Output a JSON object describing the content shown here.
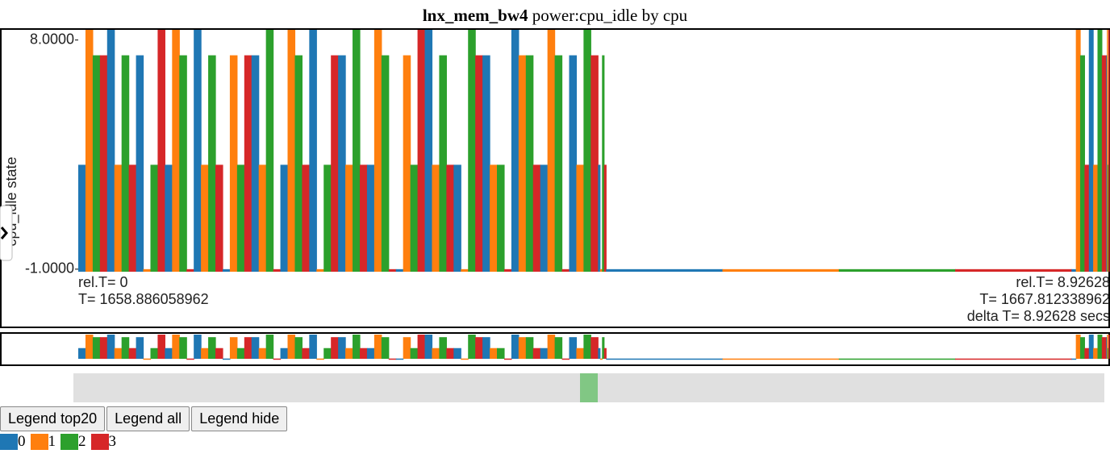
{
  "chart_data": {
    "type": "step-bars",
    "title": "lnx_mem_bw4",
    "subtitle": "power:cpu_idle by cpu",
    "y_label": "cpu_idle state",
    "ylim": [
      -1.1,
      8.4
    ],
    "yticks": [
      {
        "value": -1,
        "label": "-1.0000"
      },
      {
        "value": 8,
        "label": "8.0000"
      }
    ],
    "xlim": [
      0,
      8.92628
    ],
    "x": [
      0,
      0.25,
      0.5,
      0.75,
      1,
      1.25,
      1.5,
      1.75,
      2,
      2.25,
      2.5,
      2.75,
      3,
      3.25,
      3.5,
      3.75,
      4,
      4.25,
      4.5,
      4.57,
      8.6,
      8.75,
      8.9
    ],
    "series": [
      {
        "name": "0",
        "color": "#1f77b4",
        "values": [
          3.1,
          8.4,
          7.4,
          3.1,
          8.4,
          -1,
          7.4,
          3.1,
          8.4,
          7.4,
          3.1,
          -1,
          8.4,
          3.1,
          7.4,
          8.4,
          3.1,
          7.4,
          3.1,
          -1,
          -1,
          8.4,
          7.4
        ]
      },
      {
        "name": "1",
        "color": "#ff7f0e",
        "values": [
          8.4,
          3.1,
          -1,
          8.4,
          3.1,
          7.4,
          3.1,
          8.4,
          -1,
          3.1,
          8.4,
          7.4,
          3.1,
          -1,
          3.1,
          7.4,
          8.4,
          3.1,
          -1,
          -1,
          8.4,
          3.1,
          8.4
        ]
      },
      {
        "name": "2",
        "color": "#2ca02c",
        "values": [
          7.4,
          7.4,
          3.1,
          7.4,
          7.4,
          3.1,
          8.4,
          7.4,
          3.1,
          8.4,
          7.4,
          3.1,
          7.4,
          8.4,
          3.1,
          7.4,
          7.4,
          8.4,
          7.4,
          -1,
          7.4,
          8.4,
          3.1
        ]
      },
      {
        "name": "3",
        "color": "#d62728",
        "values": [
          7.4,
          3.1,
          8.4,
          -1,
          3.1,
          7.4,
          -1,
          3.1,
          7.4,
          3.1,
          -1,
          8.4,
          3.1,
          7.4,
          -1,
          3.1,
          -1,
          7.4,
          3.1,
          -1,
          3.1,
          7.4,
          8.4
        ]
      }
    ],
    "annotations": {
      "left": [
        "rel.T= 0",
        "T= 1658.886058962"
      ],
      "right": [
        "rel.T= 8.92628",
        "T= 1667.812338962",
        "delta T= 8.92628  secs"
      ]
    }
  },
  "buttons": [
    "Legend top20",
    "Legend all",
    "Legend hide"
  ]
}
